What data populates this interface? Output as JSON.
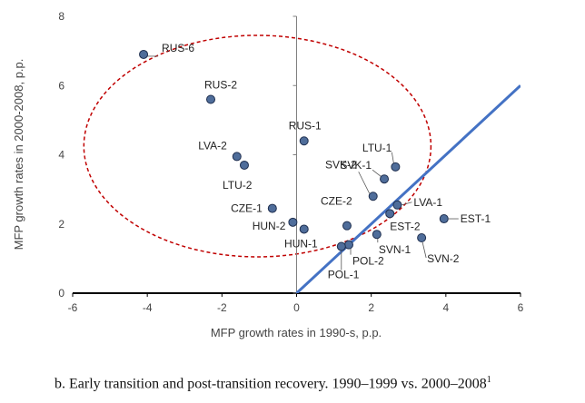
{
  "chart_data": {
    "type": "scatter",
    "xlabel": "MFP growth rates in 1990-s, p.p.",
    "ylabel": "MFP growth rates in 2000-2008, p.p.",
    "xlim": [
      -6,
      6
    ],
    "ylim": [
      0,
      8
    ],
    "xticks": [
      "-6",
      "-4",
      "-2",
      "0",
      "2",
      "4",
      "6"
    ],
    "yticks": [
      "0",
      "2",
      "4",
      "6",
      "8"
    ],
    "grid": false,
    "points": [
      {
        "label": "RUS-6",
        "x": -4.1,
        "y": 6.9
      },
      {
        "label": "RUS-2",
        "x": -2.3,
        "y": 5.6
      },
      {
        "label": "RUS-1",
        "x": 0.2,
        "y": 4.4
      },
      {
        "label": "LVA-2",
        "x": -1.6,
        "y": 3.95
      },
      {
        "label": "LTU-2",
        "x": -1.4,
        "y": 3.7
      },
      {
        "label": "CZE-1",
        "x": -0.65,
        "y": 2.45
      },
      {
        "label": "HUN-2",
        "x": -0.1,
        "y": 2.05
      },
      {
        "label": "HUN-1",
        "x": 0.2,
        "y": 1.85
      },
      {
        "label": "CZE-2",
        "x": 1.35,
        "y": 1.95
      },
      {
        "label": "SVK-2",
        "x": 2.05,
        "y": 2.8
      },
      {
        "label": "SVK-1",
        "x": 2.35,
        "y": 3.3
      },
      {
        "label": "LTU-1",
        "x": 2.65,
        "y": 3.65
      },
      {
        "label": "LVA-1",
        "x": 2.7,
        "y": 2.55
      },
      {
        "label": "EST-2",
        "x": 2.5,
        "y": 2.3
      },
      {
        "label": "EST-1",
        "x": 3.95,
        "y": 2.15
      },
      {
        "label": "SVN-1",
        "x": 2.15,
        "y": 1.7
      },
      {
        "label": "SVN-2",
        "x": 3.35,
        "y": 1.6
      },
      {
        "label": "POL-2",
        "x": 1.4,
        "y": 1.4
      },
      {
        "label": "POL-1",
        "x": 1.2,
        "y": 1.35
      }
    ],
    "reference_line": {
      "type": "y=x",
      "from": [
        0,
        0
      ],
      "to": [
        6,
        6
      ],
      "color": "#4472C4"
    },
    "highlight_ellipse": {
      "center": [
        -1.05,
        4.25
      ],
      "rx": 4.65,
      "ry": 3.2,
      "color": "#C00000",
      "style": "dashed"
    },
    "marker_fill": "#4F6D9A",
    "marker_edge": "#1F2F4F"
  },
  "caption": {
    "text": "b. Early transition and post-transition recovery. 1990–1999 vs. 2000–2008",
    "footnote_mark": "1"
  }
}
